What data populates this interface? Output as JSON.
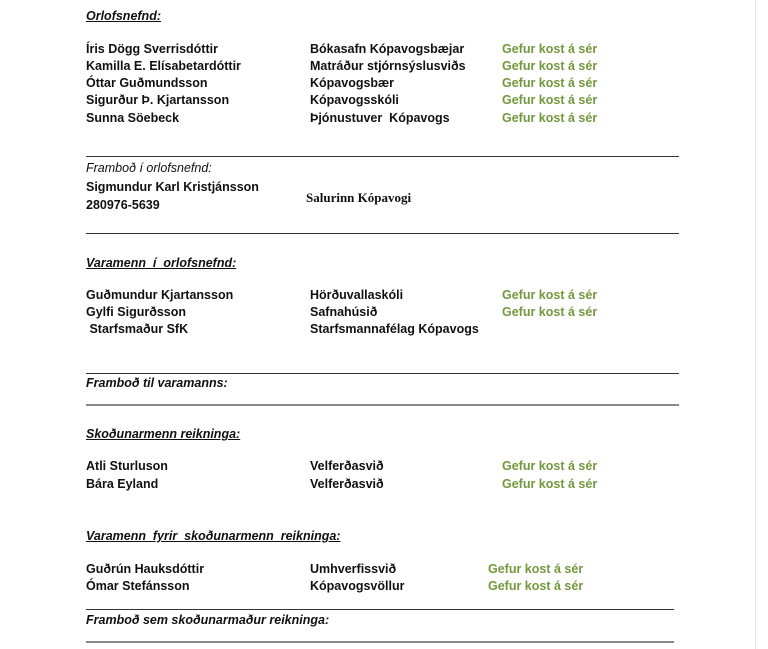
{
  "sections": {
    "orlofsnefnd": {
      "heading": "Orlofsnefnd:",
      "rows": [
        {
          "name": "Íris Dögg Sverrisdóttir",
          "workplace": "Bókasafn Kópavogsbæjar",
          "status": "Gefur kost á sér"
        },
        {
          "name": "Kamilla E. Elísabetardóttir",
          "workplace": "Matráður stjórnsýslusviðs",
          "status": "Gefur kost á sér"
        },
        {
          "name": "Óttar Guðmundsson",
          "workplace": "Kópavogsbær",
          "status": "Gefur kost á sér"
        },
        {
          "name": "Sigurður Þ. Kjartansson",
          "workplace": "Kópavogsskóli",
          "status": "Gefur kost á sér"
        },
        {
          "name": "Sunna Söebeck",
          "workplace": "Þjónustuver  Kópavogs",
          "status": "Gefur kost á sér"
        }
      ]
    },
    "frambod_orlofsnefnd": {
      "heading": "Framboð í orlofsnefnd:",
      "name": "Sigmundur Karl Kristjánsson",
      "id_number": "280976-5639",
      "workplace": "Salurinn Kópavogi"
    },
    "varamenn_orlofsnefnd": {
      "heading": "Varamenn  í  orlofsnefnd:",
      "rows": [
        {
          "name": "Guðmundur Kjartansson",
          "workplace": "Hörðuvallaskóli",
          "status": "Gefur kost á sér"
        },
        {
          "name": "Gylfi Sigurðsson",
          "workplace": "Safnahúsið",
          "status": "Gefur kost á sér"
        },
        {
          "name": " Starfsmaður SfK",
          "workplace": "Starfsmannafélag Kópavogs",
          "status": ""
        }
      ]
    },
    "frambod_varamanns": {
      "heading": "Framboð til varamanns:"
    },
    "skodunarmenn": {
      "heading": "Skoðunarmenn reikninga:",
      "rows": [
        {
          "name": "Atli Sturluson",
          "workplace": "Velferðasvið",
          "status": "Gefur kost á sér"
        },
        {
          "name": "Bára Eyland",
          "workplace": "Velferðasvið",
          "status": "Gefur kost á sér"
        }
      ]
    },
    "varamenn_skodunarmenn": {
      "heading": "Varamenn  fyrir  skoðunarmenn  reikninga:",
      "rows": [
        {
          "name": "Guðrún Hauksdóttir",
          "workplace": "Umhverfissvið",
          "status": "Gefur kost á sér"
        },
        {
          "name": "Ómar Stefánsson",
          "workplace": "Kópavogsvöllur",
          "status": "Gefur kost á sér"
        }
      ]
    },
    "frambod_skodunarmadur": {
      "heading": "Framboð sem skoðunarmaður reikninga:"
    }
  },
  "colors": {
    "status_green": "#73983c",
    "text": "#111111"
  }
}
